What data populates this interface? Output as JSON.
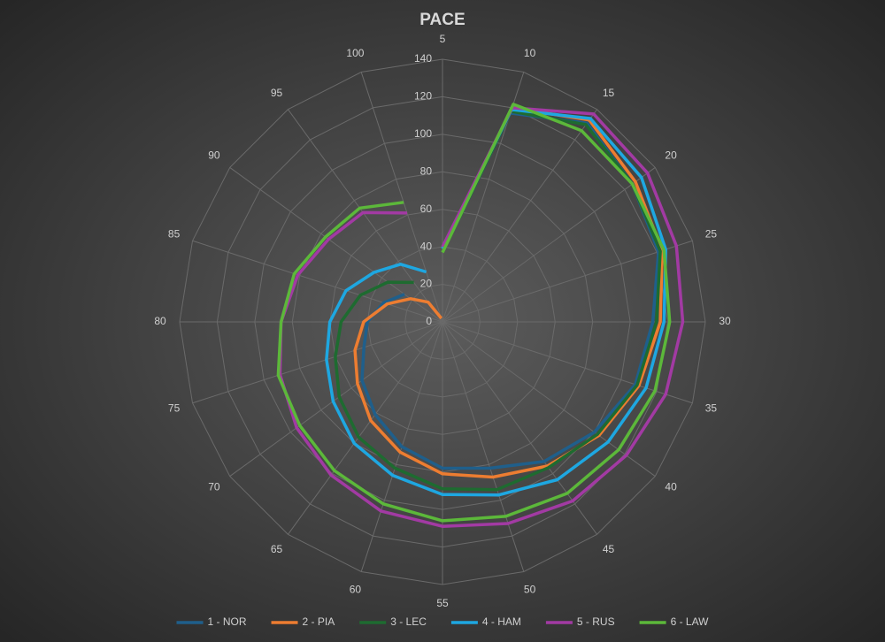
{
  "chart_data": {
    "type": "radar",
    "title": "PACE",
    "categories": [
      "5",
      "10",
      "15",
      "20",
      "25",
      "30",
      "35",
      "40",
      "45",
      "50",
      "55",
      "60",
      "65",
      "70",
      "75",
      "80",
      "85",
      "90",
      "95",
      "100"
    ],
    "series": [
      {
        "name": "1 - NOR",
        "color": "#1f5f8b",
        "values": [
          37,
          117,
          131,
          125,
          121,
          112,
          108,
          100,
          92,
          82,
          78,
          70,
          61,
          53,
          44,
          40,
          33,
          25,
          null,
          null
        ]
      },
      {
        "name": "2 - PIA",
        "color": "#ed7d31",
        "values": [
          37,
          120,
          133,
          127,
          123,
          116,
          110,
          103,
          95,
          87,
          81,
          73,
          65,
          56,
          49,
          42,
          31,
          21,
          13,
          2
        ]
      },
      {
        "name": "3 - LEC",
        "color": "#1e6b30",
        "values": [
          37,
          118,
          130,
          125,
          122,
          114,
          109,
          102,
          96,
          94,
          89,
          82,
          76,
          68,
          60,
          54,
          46,
          36,
          26,
          null
        ]
      },
      {
        "name": "4 - HAM",
        "color": "#1ea7e1",
        "values": [
          39,
          119,
          134,
          131,
          125,
          118,
          114,
          109,
          104,
          97,
          92,
          86,
          80,
          72,
          65,
          60,
          54,
          45,
          38,
          28
        ]
      },
      {
        "name": "5 - RUS",
        "color": "#a23aa3",
        "values": [
          40,
          120,
          137,
          135,
          131,
          128,
          125,
          121,
          118,
          113,
          109,
          106,
          101,
          96,
          91,
          86,
          81,
          75,
          72,
          61
        ]
      },
      {
        "name": "6 - LAW",
        "color": "#5cb83a",
        "values": [
          37,
          122,
          126,
          125,
          124,
          121,
          119,
          116,
          113,
          109,
          106,
          102,
          98,
          94,
          92,
          86,
          83,
          77,
          75,
          67
        ]
      }
    ],
    "rlim": [
      0,
      140
    ],
    "rticks": [
      0,
      20,
      40,
      60,
      80,
      100,
      120,
      140
    ],
    "grid": true,
    "legend": "bottom"
  }
}
